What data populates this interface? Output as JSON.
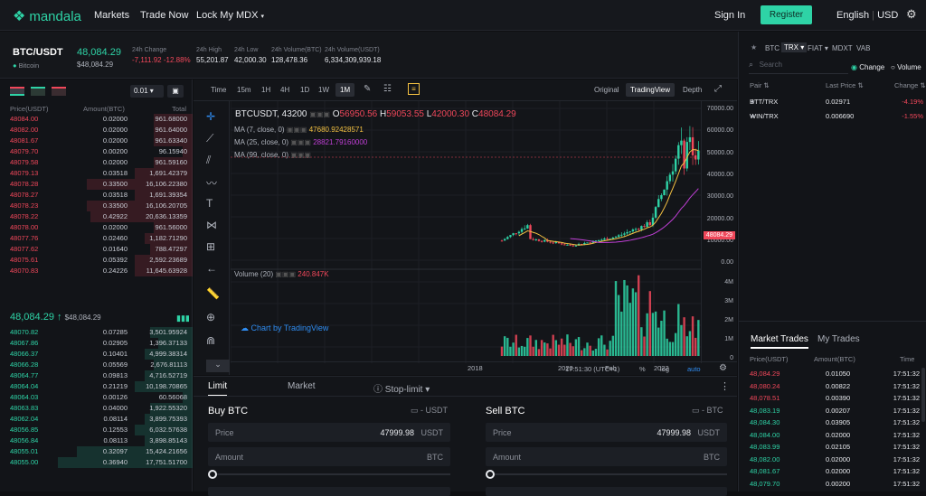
{
  "header": {
    "logo": "mandala",
    "nav": [
      "Markets",
      "Trade Now",
      "Lock My MDX"
    ],
    "signin": "Sign In",
    "register": "Register",
    "lang": "English",
    "currency": "USD"
  },
  "ticker": {
    "pair": "BTC/USDT",
    "name": "Bitcoin",
    "price": "48,084.29",
    "price_usd": "$48,084.29",
    "stats": [
      {
        "label": "24h Change",
        "value": "-7,111.92 -12.88%"
      },
      {
        "label": "24h High",
        "value": "55,201.87"
      },
      {
        "label": "24h Low",
        "value": "42,000.30"
      },
      {
        "label": "24h Volume(BTC)",
        "value": "128,478.36"
      },
      {
        "label": "24h Volume(USDT)",
        "value": "6,334,309,939.18"
      }
    ]
  },
  "orderbook": {
    "precision": "0.01",
    "headers": [
      "Price(USDT)",
      "Amount(BTC)",
      "Total"
    ],
    "asks": [
      [
        "48084.00",
        "0.02000",
        "961.68000"
      ],
      [
        "48082.00",
        "0.02000",
        "961.64000"
      ],
      [
        "48081.67",
        "0.02000",
        "961.63340"
      ],
      [
        "48079.70",
        "0.00200",
        "96.15940"
      ],
      [
        "48079.58",
        "0.02000",
        "961.59160"
      ],
      [
        "48079.13",
        "0.03518",
        "1,691.42379"
      ],
      [
        "48078.28",
        "0.33500",
        "16,106.22380"
      ],
      [
        "48078.27",
        "0.03518",
        "1,691.39354"
      ],
      [
        "48078.23",
        "0.33500",
        "16,106.20705"
      ],
      [
        "48078.22",
        "0.42922",
        "20,636.13359"
      ],
      [
        "48078.00",
        "0.02000",
        "961.56000"
      ],
      [
        "48077.76",
        "0.02460",
        "1,182.71290"
      ],
      [
        "48077.62",
        "0.01640",
        "788.47297"
      ],
      [
        "48075.61",
        "0.05392",
        "2,592.23689"
      ],
      [
        "48070.83",
        "0.24226",
        "11,645.63928"
      ]
    ],
    "ask_depth": [
      0.2,
      0.2,
      0.2,
      0.05,
      0.2,
      0.3,
      0.55,
      0.3,
      0.55,
      0.53,
      0.2,
      0.25,
      0.22,
      0.3,
      0.3
    ],
    "last_price": "48,084.29",
    "last_price_usd": "$48,084.29",
    "bids": [
      [
        "48070.82",
        "0.07285",
        "3,501.95924"
      ],
      [
        "48067.86",
        "0.02905",
        "1,396.37133"
      ],
      [
        "48066.37",
        "0.10401",
        "4,999.38314"
      ],
      [
        "48066.28",
        "0.05569",
        "2,676.81113"
      ],
      [
        "48064.77",
        "0.09813",
        "4,716.52719"
      ],
      [
        "48064.04",
        "0.21219",
        "10,198.70865"
      ],
      [
        "48064.03",
        "0.00126",
        "60.56068"
      ],
      [
        "48063.83",
        "0.04000",
        "1,922.55320"
      ],
      [
        "48062.04",
        "0.08114",
        "3,899.75393"
      ],
      [
        "48056.85",
        "0.12553",
        "6,032.57638"
      ],
      [
        "48056.84",
        "0.08113",
        "3,898.85143"
      ],
      [
        "48055.01",
        "0.32097",
        "15,424.21656"
      ],
      [
        "48055.00",
        "0.36940",
        "17,751.51700"
      ]
    ],
    "bid_depth": [
      0.22,
      0.18,
      0.25,
      0.2,
      0.25,
      0.3,
      0.05,
      0.22,
      0.25,
      0.3,
      0.25,
      0.6,
      0.7
    ]
  },
  "chart": {
    "timeframes": [
      "Time",
      "15m",
      "1H",
      "4H",
      "1D",
      "1W",
      "1M"
    ],
    "views": [
      "Original",
      "TradingView",
      "Depth"
    ],
    "symbol": "BTCUSDT, 43200",
    "o": "56950.56",
    "h": "59053.55",
    "l": "42000.30",
    "c": "48084.29",
    "ma": [
      {
        "label": "MA (7, close, 0)",
        "value": "47680.92428571",
        "color": "#f5c242"
      },
      {
        "label": "MA (25, close, 0)",
        "value": "28821.79160000",
        "color": "#c03fd6"
      },
      {
        "label": "MA (99, close, 0)",
        "value": "",
        "color": "#888888"
      }
    ],
    "volume_label": "Volume (20)",
    "volume_value": "240.847K",
    "y_ticks": [
      "70000.00",
      "60000.00",
      "50000.00",
      "40000.00",
      "30000.00",
      "20000.00",
      "10000.00",
      "0.00"
    ],
    "vol_ticks": [
      "4M",
      "3M",
      "2M",
      "1M",
      "0"
    ],
    "x_ticks": [
      "2018",
      "2020",
      "Feb",
      "2022"
    ],
    "last_label": "48084.29",
    "watermark": "Chart by TradingView",
    "footer": [
      "17:51:30 (UTC+1)",
      "%",
      "log",
      "auto"
    ]
  },
  "trade": {
    "tabs": [
      "Limit",
      "Market",
      "Stop-limit"
    ],
    "buy": {
      "title": "Buy BTC",
      "balance": "- USDT",
      "price_label": "Price",
      "price": "47999.98",
      "unit": "USDT",
      "amount_label": "Amount",
      "amount_unit": "BTC"
    },
    "sell": {
      "title": "Sell BTC",
      "balance": "- BTC",
      "price_label": "Price",
      "price": "47999.98",
      "unit": "USDT",
      "amount_label": "Amount",
      "amount_unit": "BTC"
    }
  },
  "markets": {
    "tabs": [
      "BTC",
      "TRX",
      "FIAT",
      "MDXT",
      "VAB"
    ],
    "search_placeholder": "Search",
    "radio": [
      "Change",
      "Volume"
    ],
    "headers": [
      "Pair",
      "Last Price",
      "Change"
    ],
    "rows": [
      [
        "BTT/TRX",
        "0.02971",
        "-4.19%"
      ],
      [
        "WIN/TRX",
        "0.006690",
        "-1.55%"
      ]
    ]
  },
  "trades": {
    "tabs": [
      "Market Trades",
      "My Trades"
    ],
    "headers": [
      "Price(USDT)",
      "Amount(BTC)",
      "Time"
    ],
    "rows": [
      [
        "48,084.29",
        "0.01050",
        "17:51:32",
        "r"
      ],
      [
        "48,080.24",
        "0.00822",
        "17:51:32",
        "r"
      ],
      [
        "48,078.51",
        "0.00390",
        "17:51:32",
        "r"
      ],
      [
        "48,083.19",
        "0.00207",
        "17:51:32",
        "g"
      ],
      [
        "48,084.30",
        "0.03905",
        "17:51:32",
        "g"
      ],
      [
        "48,084.00",
        "0.02000",
        "17:51:32",
        "g"
      ],
      [
        "48,083.99",
        "0.02105",
        "17:51:32",
        "g"
      ],
      [
        "48,082.00",
        "0.02000",
        "17:51:32",
        "g"
      ],
      [
        "48,081.67",
        "0.02000",
        "17:51:32",
        "g"
      ],
      [
        "48,079.70",
        "0.00200",
        "17:51:32",
        "g"
      ]
    ]
  }
}
